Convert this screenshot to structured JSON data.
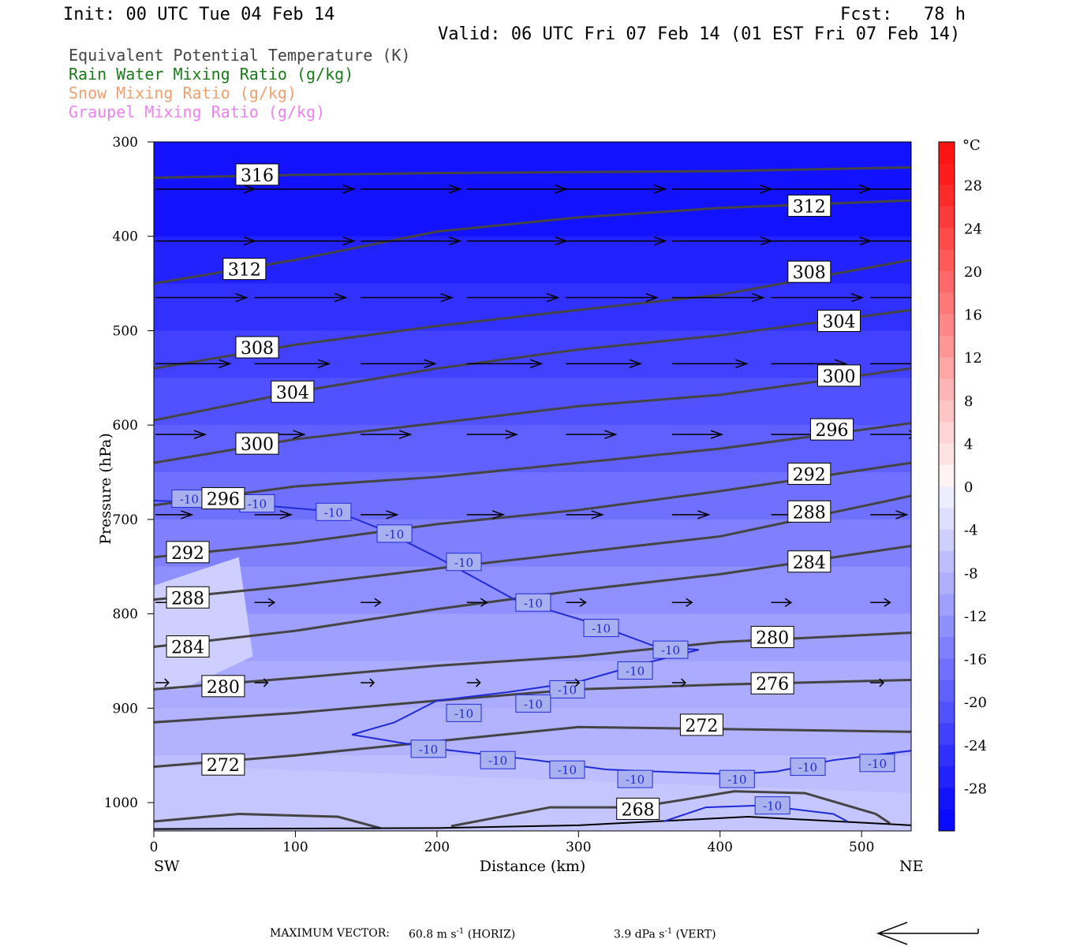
{
  "header": {
    "init": "Init: 00 UTC Tue 04 Feb 14",
    "fcst_label": "Fcst:",
    "fcst_value": "78 h",
    "valid": "Valid: 06 UTC Fri 07 Feb 14 (01 EST Fri 07 Feb 14)"
  },
  "legend": [
    {
      "text": "Equivalent Potential Temperature (K)",
      "color": "#444444"
    },
    {
      "text": "Rain Water Mixing Ratio (g/kg)",
      "color": "#1a7a1a"
    },
    {
      "text": "Snow Mixing Ratio (g/kg)",
      "color": "#f0a070"
    },
    {
      "text": "Graupel Mixing Ratio (g/kg)",
      "color": "#ee82ee"
    }
  ],
  "footer": {
    "max_vector_label": "MAXIMUM VECTOR:",
    "horiz_value": "60.8",
    "horiz_unit": "m s",
    "horiz_exp": "-1",
    "horiz_tag": "(HORIZ)",
    "vert_value": "3.9",
    "vert_unit": "dPa s",
    "vert_exp": "-1",
    "vert_tag": "(VERT)"
  },
  "chart_data": {
    "type": "cross-section",
    "xlabel": "Distance (km)",
    "ylabel": "Pressure (hPa)",
    "x_end_labels": [
      "SW",
      "NE"
    ],
    "xlim": [
      0,
      535
    ],
    "ylim": [
      1030,
      300
    ],
    "x_ticks": [
      0,
      100,
      200,
      300,
      400,
      500
    ],
    "y_ticks": [
      300,
      400,
      500,
      600,
      700,
      800,
      900,
      1000
    ],
    "colorbar": {
      "unit": "°C",
      "labels": [
        28,
        24,
        20,
        16,
        12,
        8,
        4,
        0,
        -4,
        -8,
        -12,
        -16,
        -20,
        -24,
        -28
      ],
      "range": [
        -32,
        32
      ],
      "step": 2
    },
    "temperature_shading_bands": [
      {
        "p": 300,
        "t": -30
      },
      {
        "p": 400,
        "t": -28
      },
      {
        "p": 450,
        "t": -26
      },
      {
        "p": 500,
        "t": -24
      },
      {
        "p": 550,
        "t": -22
      },
      {
        "p": 600,
        "t": -20
      },
      {
        "p": 650,
        "t": -18
      },
      {
        "p": 700,
        "t": -16
      },
      {
        "p": 750,
        "t": -14
      },
      {
        "p": 800,
        "t": -12
      },
      {
        "p": 850,
        "t": -10
      },
      {
        "p": 900,
        "t": -9
      },
      {
        "p": 950,
        "t": -8
      },
      {
        "p": 1000,
        "t": -6
      },
      {
        "p": 1030,
        "t": -6
      }
    ],
    "theta_e_contours": [
      {
        "value": 316,
        "points": [
          [
            0,
            338
          ],
          [
            100,
            335
          ],
          [
            200,
            333
          ],
          [
            300,
            332
          ],
          [
            400,
            331
          ],
          [
            535,
            327
          ]
        ],
        "labels": [
          [
            73,
            335
          ]
        ]
      },
      {
        "value": 312,
        "points": [
          [
            0,
            450
          ],
          [
            100,
            425
          ],
          [
            200,
            395
          ],
          [
            300,
            380
          ],
          [
            400,
            370
          ],
          [
            535,
            362
          ]
        ],
        "labels": [
          [
            64,
            435
          ],
          [
            463,
            368
          ]
        ]
      },
      {
        "value": 308,
        "points": [
          [
            0,
            540
          ],
          [
            100,
            515
          ],
          [
            200,
            495
          ],
          [
            300,
            478
          ],
          [
            400,
            462
          ],
          [
            535,
            425
          ]
        ],
        "labels": [
          [
            73,
            518
          ],
          [
            463,
            438
          ]
        ]
      },
      {
        "value": 304,
        "points": [
          [
            0,
            595
          ],
          [
            100,
            565
          ],
          [
            200,
            540
          ],
          [
            300,
            520
          ],
          [
            400,
            505
          ],
          [
            535,
            478
          ]
        ],
        "labels": [
          [
            98,
            565
          ],
          [
            484,
            490
          ]
        ]
      },
      {
        "value": 300,
        "points": [
          [
            0,
            640
          ],
          [
            100,
            615
          ],
          [
            200,
            598
          ],
          [
            300,
            580
          ],
          [
            400,
            568
          ],
          [
            535,
            540
          ]
        ],
        "labels": [
          [
            73,
            620
          ],
          [
            484,
            548
          ]
        ]
      },
      {
        "value": 296,
        "points": [
          [
            0,
            685
          ],
          [
            100,
            665
          ],
          [
            200,
            655
          ],
          [
            300,
            640
          ],
          [
            400,
            625
          ],
          [
            535,
            598
          ]
        ],
        "labels": [
          [
            49,
            678
          ],
          [
            479,
            605
          ]
        ]
      },
      {
        "value": 292,
        "points": [
          [
            0,
            740
          ],
          [
            100,
            725
          ],
          [
            200,
            705
          ],
          [
            300,
            690
          ],
          [
            400,
            670
          ],
          [
            535,
            640
          ]
        ],
        "labels": [
          [
            24,
            735
          ],
          [
            463,
            652
          ]
        ]
      },
      {
        "value": 288,
        "points": [
          [
            0,
            785
          ],
          [
            100,
            770
          ],
          [
            200,
            752
          ],
          [
            300,
            735
          ],
          [
            400,
            718
          ],
          [
            535,
            675
          ]
        ],
        "labels": [
          [
            24,
            783
          ],
          [
            463,
            692
          ]
        ]
      },
      {
        "value": 284,
        "points": [
          [
            0,
            835
          ],
          [
            100,
            818
          ],
          [
            200,
            795
          ],
          [
            300,
            775
          ],
          [
            400,
            758
          ],
          [
            535,
            728
          ]
        ],
        "labels": [
          [
            24,
            835
          ],
          [
            463,
            745
          ]
        ]
      },
      {
        "value": 280,
        "points": [
          [
            0,
            880
          ],
          [
            100,
            868
          ],
          [
            200,
            855
          ],
          [
            300,
            845
          ],
          [
            400,
            830
          ],
          [
            535,
            820
          ]
        ],
        "labels": [
          [
            49,
            877
          ],
          [
            437,
            825
          ]
        ]
      },
      {
        "value": 276,
        "points": [
          [
            0,
            915
          ],
          [
            100,
            905
          ],
          [
            200,
            892
          ],
          [
            300,
            880
          ],
          [
            400,
            875
          ],
          [
            535,
            870
          ]
        ],
        "labels": [
          [
            437,
            874
          ]
        ]
      },
      {
        "value": 272,
        "points": [
          [
            0,
            962
          ],
          [
            100,
            950
          ],
          [
            200,
            935
          ],
          [
            300,
            920
          ],
          [
            400,
            922
          ],
          [
            535,
            925
          ]
        ],
        "labels": [
          [
            49,
            960
          ],
          [
            387,
            918
          ]
        ]
      },
      {
        "value": 268,
        "points": [
          [
            0,
            1020
          ],
          [
            60,
            1012
          ],
          [
            130,
            1015
          ],
          [
            160,
            1027
          ]
        ],
        "labels": []
      },
      {
        "value": 268,
        "points": [
          [
            210,
            1025
          ],
          [
            280,
            1005
          ],
          [
            340,
            1005
          ],
          [
            370,
            998
          ],
          [
            410,
            988
          ],
          [
            460,
            990
          ],
          [
            510,
            1012
          ],
          [
            520,
            1022
          ]
        ],
        "labels": [
          [
            342,
            1007
          ]
        ]
      }
    ],
    "minus10_isotherm": {
      "value": -10,
      "points": [
        [
          0,
          680
        ],
        [
          60,
          683
        ],
        [
          130,
          692
        ],
        [
          160,
          710
        ],
        [
          200,
          740
        ],
        [
          255,
          785
        ],
        [
          310,
          810
        ],
        [
          355,
          835
        ],
        [
          385,
          838
        ],
        [
          340,
          855
        ],
        [
          300,
          872
        ],
        [
          250,
          883
        ],
        [
          200,
          892
        ],
        [
          170,
          915
        ],
        [
          140,
          928
        ],
        [
          200,
          943
        ],
        [
          270,
          955
        ],
        [
          320,
          965
        ],
        [
          370,
          968
        ],
        [
          410,
          970
        ],
        [
          440,
          967
        ],
        [
          480,
          955
        ],
        [
          535,
          945
        ]
      ],
      "labels": [
        [
          25,
          678
        ],
        [
          73,
          683
        ],
        [
          127,
          692
        ],
        [
          170,
          715
        ],
        [
          219,
          745
        ],
        [
          268,
          788
        ],
        [
          316,
          815
        ],
        [
          365,
          838
        ],
        [
          340,
          860
        ],
        [
          292,
          880
        ],
        [
          268,
          895
        ],
        [
          219,
          905
        ],
        [
          194,
          943
        ],
        [
          243,
          955
        ],
        [
          292,
          965
        ],
        [
          340,
          975
        ],
        [
          412,
          975
        ],
        [
          462,
          962
        ],
        [
          511,
          958
        ],
        [
          437,
          1003
        ]
      ]
    },
    "surface_isotherm_-10": {
      "points": [
        [
          360,
          1020
        ],
        [
          390,
          1005
        ],
        [
          430,
          1003
        ],
        [
          480,
          1012
        ],
        [
          490,
          1020
        ]
      ]
    },
    "wind_vectors_rows": [
      {
        "p": 350,
        "x": [
          0,
          70,
          145,
          220,
          290,
          365,
          435,
          505
        ],
        "u": 60
      },
      {
        "p": 405,
        "x": [
          0,
          70,
          145,
          220,
          290,
          365,
          435,
          505
        ],
        "u": 60
      },
      {
        "p": 465,
        "x": [
          0,
          70,
          145,
          220,
          290,
          365,
          435,
          505
        ],
        "u": 55
      },
      {
        "p": 535,
        "x": [
          0,
          70,
          145,
          220,
          290,
          365,
          435,
          505
        ],
        "u": 45
      },
      {
        "p": 610,
        "x": [
          0,
          70,
          145,
          220,
          290,
          365,
          435,
          505
        ],
        "u": 30
      },
      {
        "p": 695,
        "x": [
          0,
          70,
          145,
          220,
          290,
          365,
          435,
          505
        ],
        "u": 22
      },
      {
        "p": 788,
        "x": [
          0,
          70,
          145,
          220,
          290,
          365,
          435,
          505
        ],
        "u": 12
      },
      {
        "p": 873,
        "x": [
          0,
          70,
          145,
          220,
          290,
          365,
          435,
          505
        ],
        "u": 8
      }
    ]
  }
}
